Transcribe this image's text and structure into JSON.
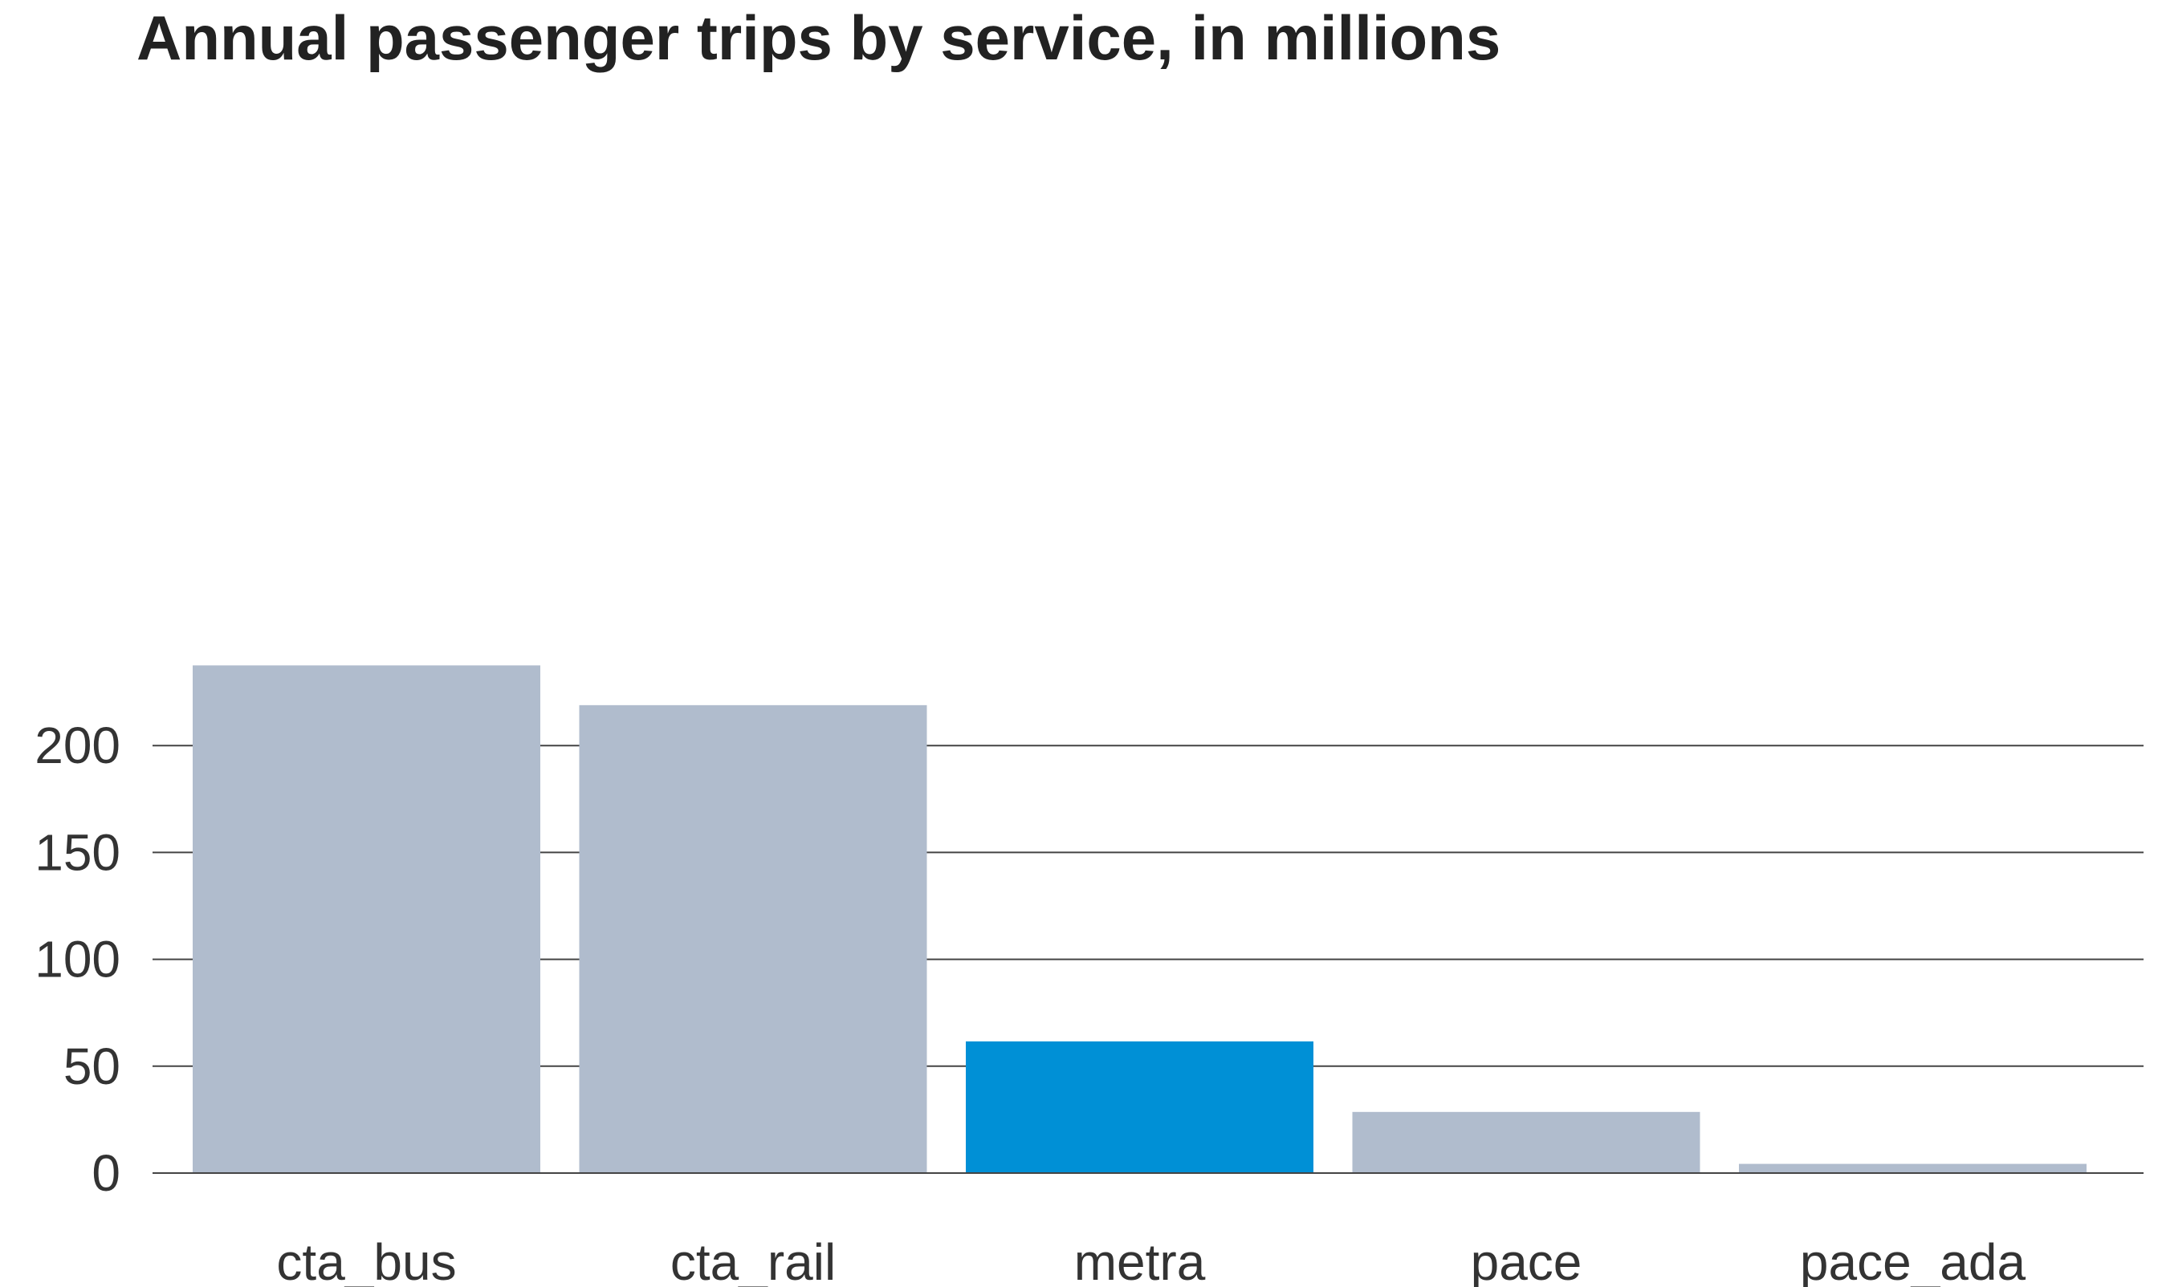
{
  "chart_data": {
    "type": "bar",
    "title": "Annual passenger trips by service, in millions",
    "xlabel": "",
    "ylabel": "",
    "categories": [
      "cta_bus",
      "cta_rail",
      "metra",
      "pace",
      "pace_ada"
    ],
    "values": [
      237.5,
      218.9,
      61.6,
      28.6,
      4.3
    ],
    "highlight": "metra",
    "ylim": [
      0,
      240
    ],
    "yticks": [
      0,
      50,
      100,
      150,
      200
    ],
    "ytick_labels": [
      "0",
      "50",
      "100",
      "150",
      "200"
    ],
    "grid": true,
    "colors": {
      "bar": "#b0bccd",
      "highlight": "#0090d6",
      "grid": "#444444",
      "text": "#333333"
    }
  }
}
